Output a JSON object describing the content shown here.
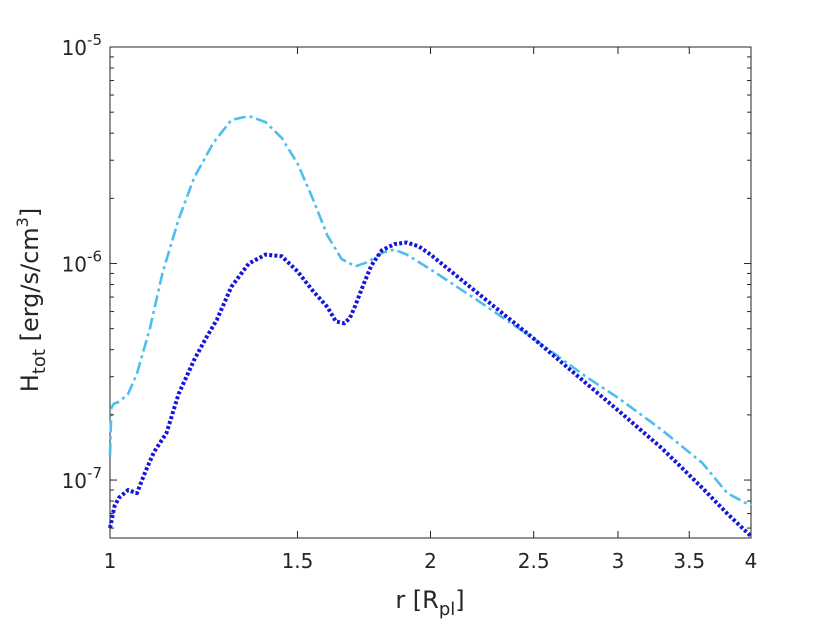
{
  "chart_data": {
    "type": "line",
    "xscale": "log",
    "yscale": "log",
    "xlim": [
      1,
      4
    ],
    "ylim": [
      5.4e-08,
      1e-05
    ],
    "grid": false,
    "legend": "none",
    "xlabel": "r [R",
    "xlabel_sub": "pl",
    "xlabel_end": "]",
    "ylabel": "H",
    "ylabel_sub": "tot",
    "ylabel_mid": " [erg/s/cm",
    "ylabel_sup": "3",
    "ylabel_end": "]",
    "xticks": [
      {
        "value": 1,
        "label": "1"
      },
      {
        "value": 1.5,
        "label": "1.5"
      },
      {
        "value": 2,
        "label": "2"
      },
      {
        "value": 2.5,
        "label": "2.5"
      },
      {
        "value": 3,
        "label": "3"
      },
      {
        "value": 3.5,
        "label": "3.5"
      },
      {
        "value": 4,
        "label": "4"
      }
    ],
    "yticks": [
      {
        "value": 1e-07,
        "base": "10",
        "exp": "-7"
      },
      {
        "value": 1e-06,
        "base": "10",
        "exp": "-6"
      },
      {
        "value": 1e-05,
        "base": "10",
        "exp": "-5"
      }
    ],
    "series": [
      {
        "style": "dashdot",
        "color": "#4DBEEE",
        "x": [
          1.0,
          1.003,
          1.008,
          1.02,
          1.04,
          1.06,
          1.09,
          1.12,
          1.16,
          1.2,
          1.25,
          1.3,
          1.35,
          1.4,
          1.45,
          1.5,
          1.55,
          1.6,
          1.65,
          1.7,
          1.75,
          1.8,
          1.85,
          1.9,
          2.0,
          2.2,
          2.5,
          2.8,
          3.0,
          3.3,
          3.6,
          3.8,
          4.0
        ],
        "y": [
          1.3e-07,
          2.15e-07,
          2.25e-07,
          2.3e-07,
          2.5e-07,
          3.1e-07,
          5e-07,
          9e-07,
          1.6e-06,
          2.5e-06,
          3.6e-06,
          4.6e-06,
          4.8e-06,
          4.5e-06,
          3.8e-06,
          2.9e-06,
          2e-06,
          1.35e-06,
          1.05e-06,
          9.7e-07,
          1.02e-06,
          1.12e-06,
          1.16e-06,
          1.1e-06,
          9.4e-07,
          6.9e-07,
          4.5e-07,
          3e-07,
          2.4e-07,
          1.7e-07,
          1.2e-07,
          8.7e-08,
          7.6e-08
        ]
      },
      {
        "style": "dotted",
        "color": "#1515DE",
        "x": [
          1.0,
          1.01,
          1.02,
          1.04,
          1.06,
          1.08,
          1.1,
          1.13,
          1.16,
          1.2,
          1.23,
          1.26,
          1.3,
          1.35,
          1.4,
          1.45,
          1.5,
          1.55,
          1.6,
          1.63,
          1.66,
          1.68,
          1.7,
          1.73,
          1.76,
          1.8,
          1.85,
          1.9,
          1.95,
          2.0,
          2.2,
          2.5,
          2.8,
          3.0,
          3.3,
          3.6,
          3.8,
          4.0
        ],
        "y": [
          6e-08,
          7.6e-08,
          8.3e-08,
          9e-08,
          8.7e-08,
          1.1e-07,
          1.35e-07,
          1.65e-07,
          2.5e-07,
          3.6e-07,
          4.5e-07,
          5.5e-07,
          7.8e-07,
          1e-06,
          1.1e-06,
          1.08e-06,
          9.2e-07,
          7.5e-07,
          6.3e-07,
          5.4e-07,
          5.3e-07,
          5.6e-07,
          6.4e-07,
          8e-07,
          9.8e-07,
          1.15e-06,
          1.23e-06,
          1.25e-06,
          1.2e-06,
          1.1e-06,
          7.5e-07,
          4.5e-07,
          2.8e-07,
          2.1e-07,
          1.4e-07,
          9.2e-08,
          7e-08,
          5.5e-08
        ]
      }
    ]
  }
}
